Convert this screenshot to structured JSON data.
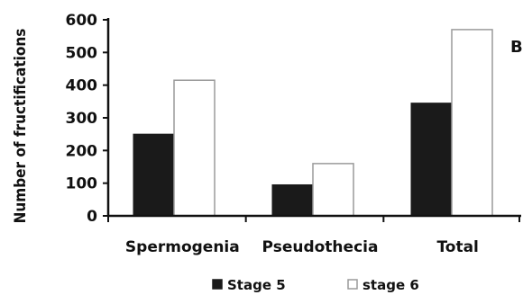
{
  "chart_data": {
    "type": "bar",
    "panel_label": "B",
    "ylabel": "Number of fructifications",
    "xlabel": "",
    "ylim": [
      0,
      600
    ],
    "yticks": [
      "0",
      "100",
      "200",
      "300",
      "400",
      "500",
      "600"
    ],
    "categories": [
      "Spermogenia",
      "Pseudothecia",
      "Total"
    ],
    "series": [
      {
        "name": "Stage 5",
        "values": [
          250,
          95,
          345
        ],
        "color": "#1a1a1a"
      },
      {
        "name": "stage 6",
        "values": [
          415,
          160,
          570
        ],
        "color": "#ffffff"
      }
    ],
    "grid": false,
    "legend_position": "bottom"
  }
}
